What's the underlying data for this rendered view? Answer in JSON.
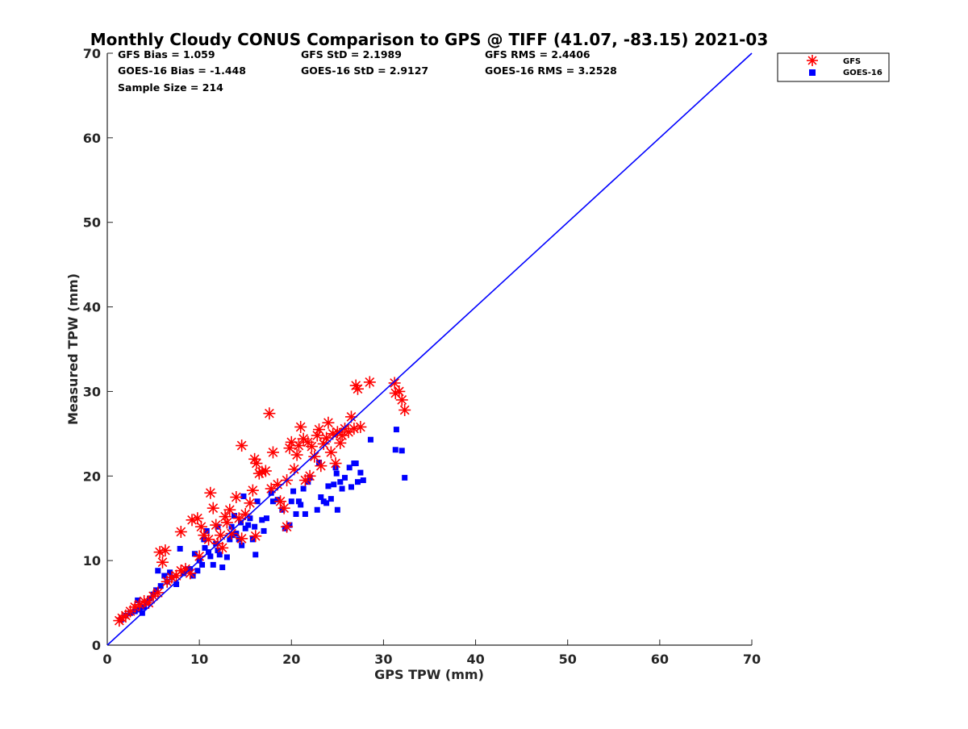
{
  "chart_data": {
    "type": "scatter",
    "title": "Monthly Cloudy CONUS Comparison to GPS @ TIFF (41.07, -83.15) 2021-03",
    "xlabel": "GPS TPW (mm)",
    "ylabel": "Measured TPW (mm)",
    "xlim": [
      0,
      70
    ],
    "ylim": [
      0,
      70
    ],
    "xticks": [
      0,
      10,
      20,
      30,
      40,
      50,
      60,
      70
    ],
    "yticks": [
      0,
      10,
      20,
      30,
      40,
      50,
      60,
      70
    ],
    "grid": false,
    "legend_position": "top-right-outside",
    "stats": [
      {
        "id": "gfs-bias",
        "text": "GFS Bias = 1.059"
      },
      {
        "id": "gfs-std",
        "text": "GFS StD = 2.1989"
      },
      {
        "id": "gfs-rms",
        "text": "GFS RMS = 2.4406"
      },
      {
        "id": "goes-bias",
        "text": "GOES-16 Bias = -1.448"
      },
      {
        "id": "goes-std",
        "text": "GOES-16 StD = 2.9127"
      },
      {
        "id": "goes-rms",
        "text": "GOES-16 RMS = 3.2528"
      },
      {
        "id": "sample-size",
        "text": "Sample Size = 214"
      }
    ],
    "reference_line": {
      "x": [
        0,
        70
      ],
      "y": [
        0,
        70
      ],
      "color": "#0000ff"
    },
    "series": [
      {
        "name": "GFS",
        "marker": "asterisk",
        "color": "#ff0000",
        "points": [
          [
            1.3,
            2.9
          ],
          [
            1.6,
            3.2
          ],
          [
            2.0,
            3.5
          ],
          [
            2.5,
            4.0
          ],
          [
            3.0,
            4.5
          ],
          [
            3.5,
            4.8
          ],
          [
            4.0,
            5.2
          ],
          [
            4.5,
            5.0
          ],
          [
            5.0,
            5.8
          ],
          [
            5.5,
            6.2
          ],
          [
            5.7,
            11.0
          ],
          [
            6.3,
            11.2
          ],
          [
            6.0,
            9.8
          ],
          [
            6.5,
            7.5
          ],
          [
            7.0,
            8.0
          ],
          [
            7.5,
            8.2
          ],
          [
            8.0,
            8.8
          ],
          [
            8.5,
            9.0
          ],
          [
            9.0,
            8.5
          ],
          [
            8.0,
            13.4
          ],
          [
            9.2,
            14.8
          ],
          [
            9.8,
            15.0
          ],
          [
            10.2,
            14.0
          ],
          [
            10.5,
            13.0
          ],
          [
            11.0,
            12.5
          ],
          [
            11.2,
            18.0
          ],
          [
            11.5,
            16.2
          ],
          [
            11.8,
            14.2
          ],
          [
            12.0,
            12.0
          ],
          [
            12.3,
            13.0
          ],
          [
            12.5,
            11.5
          ],
          [
            13.0,
            14.5
          ],
          [
            13.3,
            16.0
          ],
          [
            13.5,
            13.2
          ],
          [
            14.0,
            17.5
          ],
          [
            14.3,
            15.0
          ],
          [
            14.6,
            23.6
          ],
          [
            15.0,
            15.5
          ],
          [
            15.5,
            16.8
          ],
          [
            15.8,
            18.3
          ],
          [
            16.0,
            22.0
          ],
          [
            16.2,
            21.5
          ],
          [
            16.5,
            20.3
          ],
          [
            16.8,
            20.5
          ],
          [
            17.2,
            20.6
          ],
          [
            17.6,
            27.4
          ],
          [
            18.0,
            22.8
          ],
          [
            18.5,
            19.0
          ],
          [
            18.8,
            17.0
          ],
          [
            19.2,
            16.2
          ],
          [
            19.5,
            19.5
          ],
          [
            19.8,
            23.3
          ],
          [
            20.0,
            24.0
          ],
          [
            20.3,
            20.8
          ],
          [
            20.6,
            22.5
          ],
          [
            20.8,
            23.6
          ],
          [
            21.0,
            25.8
          ],
          [
            21.3,
            24.4
          ],
          [
            21.5,
            19.5
          ],
          [
            21.8,
            24.0
          ],
          [
            22.2,
            23.5
          ],
          [
            22.5,
            22.3
          ],
          [
            22.8,
            24.8
          ],
          [
            23.0,
            25.5
          ],
          [
            23.2,
            21.2
          ],
          [
            23.5,
            23.8
          ],
          [
            23.8,
            24.5
          ],
          [
            24.0,
            26.3
          ],
          [
            24.3,
            22.8
          ],
          [
            24.5,
            25.0
          ],
          [
            24.8,
            21.5
          ],
          [
            25.0,
            25.2
          ],
          [
            25.3,
            23.9
          ],
          [
            25.5,
            24.8
          ],
          [
            25.8,
            25.6
          ],
          [
            26.2,
            25.2
          ],
          [
            26.5,
            27.0
          ],
          [
            26.8,
            25.6
          ],
          [
            27.0,
            30.7
          ],
          [
            27.2,
            30.3
          ],
          [
            27.5,
            25.8
          ],
          [
            28.5,
            31.1
          ],
          [
            31.2,
            31.0
          ],
          [
            31.3,
            29.8
          ],
          [
            31.7,
            30.0
          ],
          [
            32.0,
            29.0
          ],
          [
            32.3,
            27.8
          ],
          [
            19.5,
            14.0
          ],
          [
            22.0,
            20.0
          ],
          [
            14.6,
            12.6
          ],
          [
            16.1,
            12.9
          ],
          [
            10.0,
            10.5
          ],
          [
            12.8,
            15.2
          ],
          [
            17.8,
            18.5
          ]
        ]
      },
      {
        "name": "GOES-16",
        "marker": "square",
        "color": "#0000ff",
        "points": [
          [
            1.5,
            3.0
          ],
          [
            2.0,
            3.5
          ],
          [
            2.5,
            3.8
          ],
          [
            3.0,
            4.0
          ],
          [
            3.3,
            5.3
          ],
          [
            3.5,
            4.2
          ],
          [
            3.8,
            3.8
          ],
          [
            4.0,
            4.5
          ],
          [
            4.3,
            5.0
          ],
          [
            4.6,
            5.5
          ],
          [
            5.0,
            6.0
          ],
          [
            5.3,
            6.5
          ],
          [
            5.5,
            8.8
          ],
          [
            5.8,
            7.0
          ],
          [
            6.2,
            8.2
          ],
          [
            6.5,
            7.5
          ],
          [
            7.0,
            8.0
          ],
          [
            7.5,
            7.2
          ],
          [
            7.9,
            11.4
          ],
          [
            8.3,
            8.5
          ],
          [
            8.8,
            9.0
          ],
          [
            9.3,
            8.2
          ],
          [
            9.5,
            10.8
          ],
          [
            9.8,
            8.8
          ],
          [
            10.0,
            10.0
          ],
          [
            10.3,
            9.5
          ],
          [
            10.5,
            12.5
          ],
          [
            10.8,
            13.5
          ],
          [
            11.0,
            11.0
          ],
          [
            11.2,
            10.5
          ],
          [
            11.5,
            9.5
          ],
          [
            11.8,
            12.0
          ],
          [
            12.0,
            11.2
          ],
          [
            12.2,
            10.7
          ],
          [
            12.5,
            9.2
          ],
          [
            13.0,
            10.4
          ],
          [
            13.3,
            12.5
          ],
          [
            13.5,
            14.0
          ],
          [
            13.8,
            15.3
          ],
          [
            14.0,
            13.2
          ],
          [
            14.3,
            12.5
          ],
          [
            14.6,
            11.8
          ],
          [
            14.8,
            17.6
          ],
          [
            15.0,
            13.8
          ],
          [
            15.3,
            14.2
          ],
          [
            15.5,
            15.0
          ],
          [
            15.8,
            12.5
          ],
          [
            16.0,
            14.0
          ],
          [
            16.1,
            10.7
          ],
          [
            16.3,
            17.0
          ],
          [
            16.8,
            14.8
          ],
          [
            17.3,
            15.0
          ],
          [
            17.8,
            18.0
          ],
          [
            18.5,
            17.2
          ],
          [
            19.0,
            16.0
          ],
          [
            19.3,
            13.8
          ],
          [
            19.8,
            14.2
          ],
          [
            20.0,
            17.0
          ],
          [
            20.2,
            18.2
          ],
          [
            20.5,
            15.5
          ],
          [
            20.8,
            17.0
          ],
          [
            21.0,
            16.6
          ],
          [
            21.3,
            18.5
          ],
          [
            21.5,
            15.5
          ],
          [
            21.8,
            19.3
          ],
          [
            22.0,
            19.8
          ],
          [
            22.8,
            16.0
          ],
          [
            23.0,
            21.6
          ],
          [
            23.2,
            17.5
          ],
          [
            23.5,
            17.0
          ],
          [
            23.8,
            16.8
          ],
          [
            24.0,
            18.8
          ],
          [
            24.3,
            17.3
          ],
          [
            24.6,
            19.0
          ],
          [
            24.8,
            21.0
          ],
          [
            25.0,
            16.0
          ],
          [
            25.3,
            19.3
          ],
          [
            25.5,
            18.5
          ],
          [
            25.8,
            19.8
          ],
          [
            26.3,
            21.0
          ],
          [
            26.5,
            18.7
          ],
          [
            26.8,
            21.5
          ],
          [
            27.0,
            21.5
          ],
          [
            27.2,
            19.3
          ],
          [
            27.5,
            20.4
          ],
          [
            27.8,
            19.5
          ],
          [
            28.6,
            24.3
          ],
          [
            31.3,
            23.1
          ],
          [
            31.4,
            25.5
          ],
          [
            32.0,
            23.0
          ],
          [
            32.3,
            19.8
          ],
          [
            9.0,
            9.0
          ],
          [
            12.0,
            14.0
          ],
          [
            13.6,
            13.0
          ],
          [
            17.0,
            13.5
          ],
          [
            24.9,
            20.3
          ],
          [
            6.8,
            8.6
          ],
          [
            10.6,
            11.5
          ],
          [
            14.5,
            14.5
          ],
          [
            18.0,
            17.0
          ]
        ]
      }
    ]
  }
}
